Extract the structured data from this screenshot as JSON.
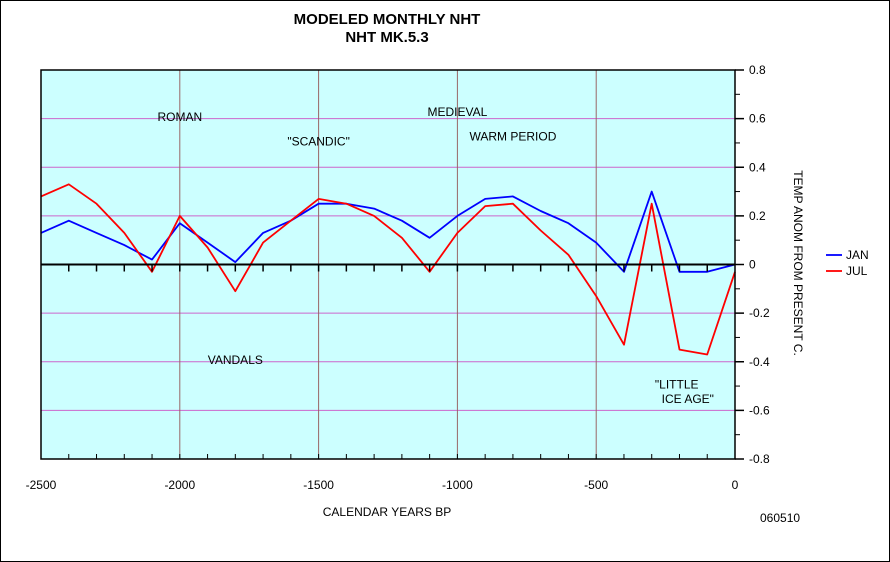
{
  "chart_data": {
    "type": "line",
    "title": "MODELED MONTHLY NHT",
    "subtitle": "NHT MK.5.3",
    "xlabel": "CALENDAR YEARS BP",
    "ylabel": "TEMP ANOM FROM PRESENT C.",
    "xlim": [
      -2500,
      0
    ],
    "ylim": [
      -0.8,
      0.8
    ],
    "x_ticks": [
      "-2500",
      "-2000",
      "-1500",
      "-1000",
      "-500",
      "0"
    ],
    "x_tick_values": [
      -2500,
      -2000,
      -1500,
      -1000,
      -500,
      0
    ],
    "y_ticks": [
      "0.8",
      "0.6",
      "0.4",
      "0.2",
      "0",
      "-0.2",
      "-0.4",
      "-0.6",
      "-0.8"
    ],
    "y_tick_values": [
      0.8,
      0.6,
      0.4,
      0.2,
      0,
      -0.2,
      -0.4,
      -0.6,
      -0.8
    ],
    "grid": true,
    "legend_position": "right",
    "plot_background": "#ccffff",
    "grid_color": "#cc66cc",
    "series": [
      {
        "name": "JAN",
        "color": "#0000ff",
        "points": [
          [
            -2500,
            0.13
          ],
          [
            -2400,
            0.18
          ],
          [
            -2300,
            0.13
          ],
          [
            -2200,
            0.08
          ],
          [
            -2100,
            0.02
          ],
          [
            -2000,
            0.17
          ],
          [
            -1900,
            0.09
          ],
          [
            -1800,
            0.01
          ],
          [
            -1700,
            0.13
          ],
          [
            -1600,
            0.18
          ],
          [
            -1500,
            0.25
          ],
          [
            -1400,
            0.25
          ],
          [
            -1300,
            0.23
          ],
          [
            -1200,
            0.18
          ],
          [
            -1100,
            0.11
          ],
          [
            -1000,
            0.2
          ],
          [
            -900,
            0.27
          ],
          [
            -800,
            0.28
          ],
          [
            -700,
            0.22
          ],
          [
            -600,
            0.17
          ],
          [
            -500,
            0.09
          ],
          [
            -400,
            -0.03
          ],
          [
            -300,
            0.3
          ],
          [
            -200,
            -0.03
          ],
          [
            -100,
            -0.03
          ],
          [
            0,
            0.0
          ]
        ]
      },
      {
        "name": "JUL",
        "color": "#ff0000",
        "points": [
          [
            -2500,
            0.28
          ],
          [
            -2400,
            0.33
          ],
          [
            -2300,
            0.25
          ],
          [
            -2200,
            0.13
          ],
          [
            -2100,
            -0.03
          ],
          [
            -2000,
            0.2
          ],
          [
            -1900,
            0.07
          ],
          [
            -1800,
            -0.11
          ],
          [
            -1700,
            0.09
          ],
          [
            -1600,
            0.18
          ],
          [
            -1500,
            0.27
          ],
          [
            -1400,
            0.25
          ],
          [
            -1300,
            0.2
          ],
          [
            -1200,
            0.11
          ],
          [
            -1100,
            -0.03
          ],
          [
            -1000,
            0.13
          ],
          [
            -900,
            0.24
          ],
          [
            -800,
            0.25
          ],
          [
            -700,
            0.14
          ],
          [
            -600,
            0.04
          ],
          [
            -500,
            -0.13
          ],
          [
            -400,
            -0.33
          ],
          [
            -300,
            0.25
          ],
          [
            -200,
            -0.35
          ],
          [
            -100,
            -0.37
          ],
          [
            0,
            -0.03
          ]
        ]
      }
    ],
    "annotations": [
      {
        "text": "ROMAN",
        "x": -2000,
        "y": 0.59
      },
      {
        "text": "\"SCANDIC\"",
        "x": -1500,
        "y": 0.49
      },
      {
        "text": "MEDIEVAL",
        "x": -1000,
        "y": 0.61
      },
      {
        "text": "WARM PERIOD",
        "x": -800,
        "y": 0.51
      },
      {
        "text": "VANDALS",
        "x": -1800,
        "y": -0.41
      },
      {
        "text": "\"LITTLE",
        "x": -210,
        "y": -0.51
      },
      {
        "text": "ICE AGE\"",
        "x": -170,
        "y": -0.57
      }
    ],
    "footnote": "060510"
  }
}
